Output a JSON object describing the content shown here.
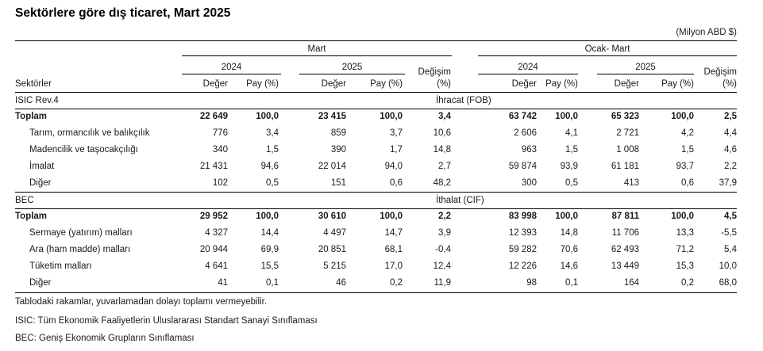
{
  "title": "Sektörlere göre dış ticaret, Mart 2025",
  "unit": "(Milyon ABD $)",
  "header": {
    "group_mart": "Mart",
    "group_ocak_mart": "Ocak- Mart",
    "year_2024": "2024",
    "year_2025": "2025",
    "change_label_1": "Değişim",
    "change_label_2": "(%)",
    "sectors_label": "Sektörler",
    "value_label": "Değer",
    "share_label": "Pay (%)"
  },
  "sections": [
    {
      "section_label": "ISIC  Rev.4",
      "section_title": "İhracat (FOB)",
      "rows": [
        {
          "label": "Toplam",
          "bold": true,
          "values": [
            "22 649",
            "100,0",
            "23 415",
            "100,0",
            "3,4",
            "63 742",
            "100,0",
            "65 323",
            "100,0",
            "2,5"
          ]
        },
        {
          "label": "Tarım, ormancılık ve balıkçılık",
          "bold": false,
          "values": [
            "776",
            "3,4",
            "859",
            "3,7",
            "10,6",
            "2 606",
            "4,1",
            "2 721",
            "4,2",
            "4,4"
          ]
        },
        {
          "label": "Madencilik ve taşocakçılığı",
          "bold": false,
          "values": [
            "340",
            "1,5",
            "390",
            "1,7",
            "14,8",
            "963",
            "1,5",
            "1 008",
            "1,5",
            "4,6"
          ]
        },
        {
          "label": "İmalat",
          "bold": false,
          "values": [
            "21 431",
            "94,6",
            "22 014",
            "94,0",
            "2,7",
            "59 874",
            "93,9",
            "61 181",
            "93,7",
            "2,2"
          ]
        },
        {
          "label": "Diğer",
          "bold": false,
          "values": [
            "102",
            "0,5",
            "151",
            "0,6",
            "48,2",
            "300",
            "0,5",
            "413",
            "0,6",
            "37,9"
          ]
        }
      ]
    },
    {
      "section_label": "BEC",
      "section_title": "İthalat (CIF)",
      "rows": [
        {
          "label": "Toplam",
          "bold": true,
          "values": [
            "29 952",
            "100,0",
            "30 610",
            "100,0",
            "2,2",
            "83 998",
            "100,0",
            "87 811",
            "100,0",
            "4,5"
          ]
        },
        {
          "label": "Sermaye (yatırım) malları",
          "bold": false,
          "values": [
            "4 327",
            "14,4",
            "4 497",
            "14,7",
            "3,9",
            "12 393",
            "14,8",
            "11 706",
            "13,3",
            "-5,5"
          ]
        },
        {
          "label": "Ara (ham madde) malları",
          "bold": false,
          "values": [
            "20 944",
            "69,9",
            "20 851",
            "68,1",
            "-0,4",
            "59 282",
            "70,6",
            "62 493",
            "71,2",
            "5,4"
          ]
        },
        {
          "label": "Tüketim malları",
          "bold": false,
          "values": [
            "4 641",
            "15,5",
            "5 215",
            "17,0",
            "12,4",
            "12 226",
            "14,6",
            "13 449",
            "15,3",
            "10,0"
          ]
        },
        {
          "label": "Diğer",
          "bold": false,
          "values": [
            "41",
            "0,1",
            "46",
            "0,2",
            "11,9",
            "98",
            "0,1",
            "164",
            "0,2",
            "68,0"
          ]
        }
      ]
    }
  ],
  "notes": [
    "Tablodaki rakamlar, yuvarlamadan dolayı toplamı vermeyebilir.",
    "ISIC: Tüm Ekonomik Faaliyetlerin Uluslararası Standart Sanayi Sınıflaması",
    "BEC: Geniş Ekonomik Grupların Sınıflaması"
  ]
}
